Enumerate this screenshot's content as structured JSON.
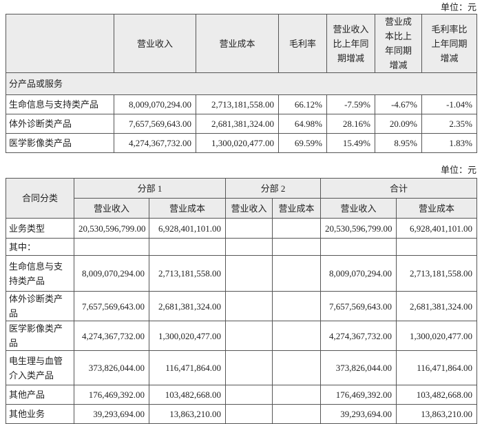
{
  "table1": {
    "unit": "单位：元",
    "headers": [
      "营业收入",
      "营业成本",
      "毛利率",
      "营业收入比上年同期增减",
      "营业成本比上年同期增减",
      "毛利率比上年同期增减"
    ],
    "section": "分产品或服务",
    "rows": [
      {
        "label": "生命信息与支持类产品",
        "cells": [
          "8,009,070,294.00",
          "2,713,181,558.00",
          "66.12%",
          "-7.59%",
          "-4.67%",
          "-1.04%"
        ]
      },
      {
        "label": "体外诊断类产品",
        "cells": [
          "7,657,569,643.00",
          "2,681,381,324.00",
          "64.98%",
          "28.16%",
          "20.09%",
          "2.35%"
        ]
      },
      {
        "label": "医学影像类产品",
        "cells": [
          "4,274,367,732.00",
          "1,300,020,477.00",
          "69.59%",
          "15.49%",
          "8.95%",
          "1.83%"
        ]
      }
    ]
  },
  "table2": {
    "unit": "单位：元",
    "header": "合同分类",
    "groups": [
      "分部 1",
      "分部 2",
      "合计"
    ],
    "subheaders": [
      "营业收入",
      "营业成本",
      "营业收入",
      "营业成本",
      "营业收入",
      "营业成本"
    ],
    "rows": [
      {
        "label": "业务类型",
        "segment1": [
          "20,530,596,799.00",
          "6,928,401,101.00"
        ],
        "total": [
          "20,530,596,799.00",
          "6,928,401,101.00"
        ]
      },
      {
        "label": "其中："
      },
      {
        "label": "生命信息与支持类产品",
        "segment1": [
          "8,009,070,294.00",
          "2,713,181,558.00"
        ],
        "total": [
          "8,009,070,294.00",
          "2,713,181,558.00"
        ]
      },
      {
        "label": "体外诊断类产品",
        "segment1": [
          "7,657,569,643.00",
          "2,681,381,324.00"
        ],
        "total": [
          "7,657,569,643.00",
          "2,681,381,324.00"
        ]
      },
      {
        "label": "医学影像类产品",
        "segment1": [
          "4,274,367,732.00",
          "1,300,020,477.00"
        ],
        "total": [
          "4,274,367,732.00",
          "1,300,020,477.00"
        ]
      },
      {
        "label": "电生理与血管介入类产品",
        "segment1": [
          "373,826,044.00",
          "116,471,864.00"
        ],
        "total": [
          "373,826,044.00",
          "116,471,864.00"
        ]
      },
      {
        "label": "其他产品",
        "segment1": [
          "176,469,392.00",
          "103,482,668.00"
        ],
        "total": [
          "176,469,392.00",
          "103,482,668.00"
        ]
      },
      {
        "label": "其他业务",
        "segment1": [
          "39,293,694.00",
          "13,863,210.00"
        ],
        "total": [
          "39,293,694.00",
          "13,863,210.00"
        ]
      }
    ]
  }
}
